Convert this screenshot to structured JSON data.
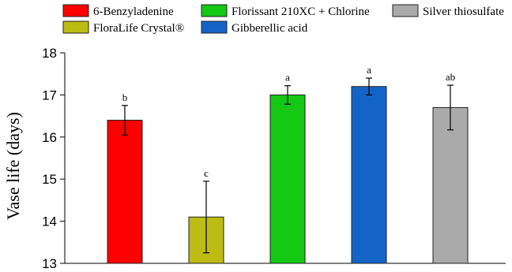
{
  "chart_data": {
    "type": "bar",
    "ylabel": "Vase life (days)",
    "ylim": [
      13,
      18
    ],
    "yticks": [
      13,
      14,
      15,
      16,
      17,
      18
    ],
    "grid": false,
    "legend_position": "top",
    "categories": [
      "6-Benzyladenine",
      "FloraLife Crystal®",
      "Florissant 210XC + Chlorine",
      "Gibberellic acid",
      "Silver thiosulfate"
    ],
    "values": [
      16.4,
      14.1,
      17.0,
      17.2,
      16.7
    ],
    "error": [
      0.35,
      0.85,
      0.22,
      0.2,
      0.53
    ],
    "significance": [
      "b",
      "c",
      "a",
      "a",
      "ab"
    ],
    "colors": [
      "#ff0000",
      "#bcbc14",
      "#14c814",
      "#1464c8",
      "#aaaaaa"
    ]
  }
}
